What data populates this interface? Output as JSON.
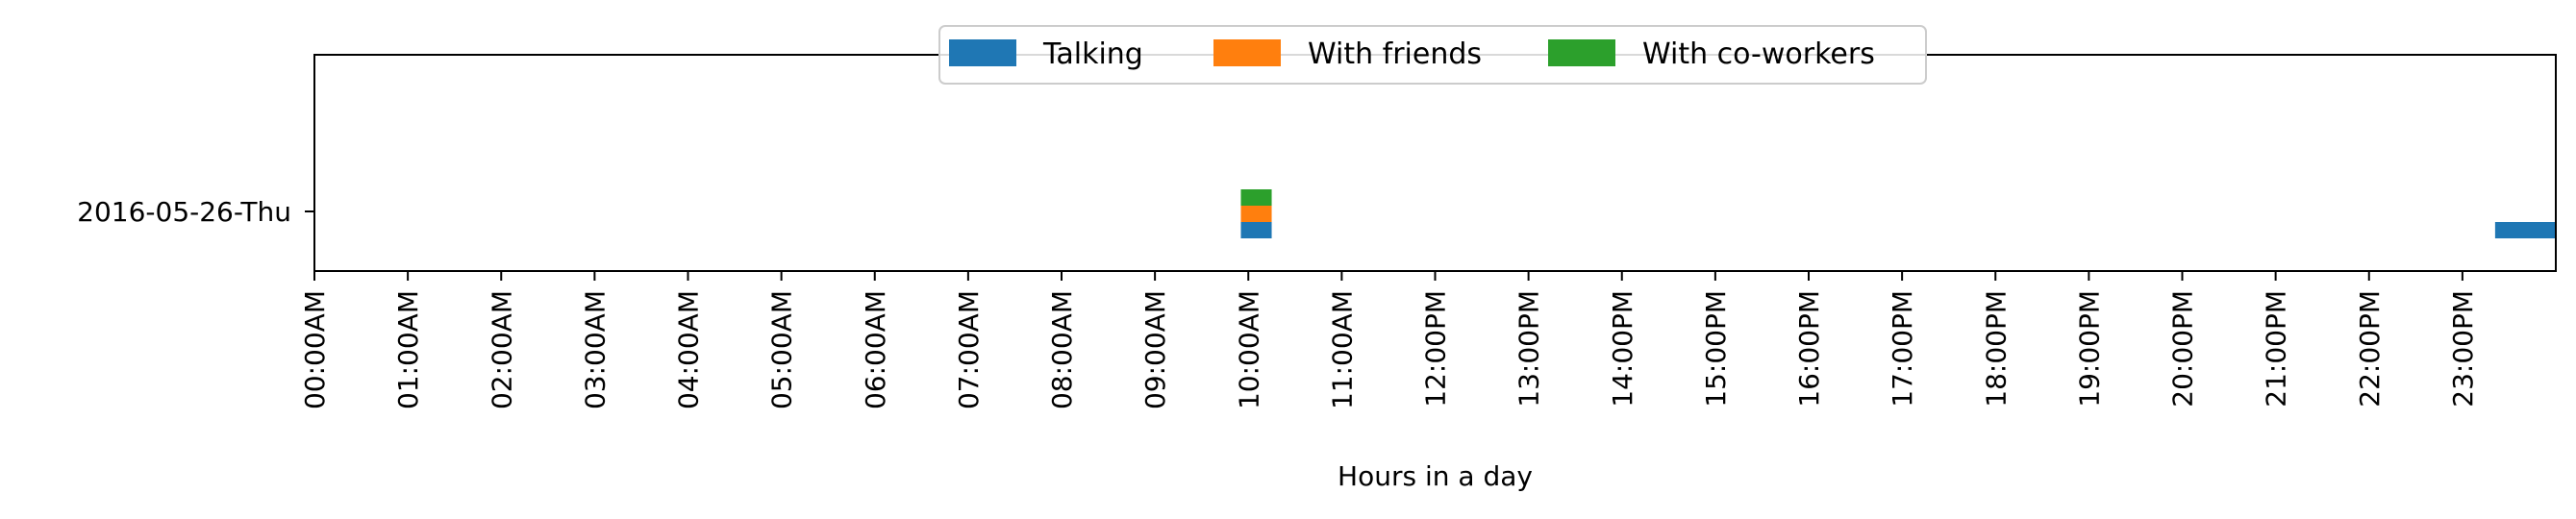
{
  "chart_data": {
    "type": "bar",
    "orientation": "horizontal-timeline",
    "title": "",
    "xlabel": "Hours in a day",
    "ylabel": "",
    "xlim": [
      0,
      24
    ],
    "categories": [
      "2016-05-26-Thu"
    ],
    "x_ticks": [
      {
        "value": 0,
        "label": "00:00AM"
      },
      {
        "value": 1,
        "label": "01:00AM"
      },
      {
        "value": 2,
        "label": "02:00AM"
      },
      {
        "value": 3,
        "label": "03:00AM"
      },
      {
        "value": 4,
        "label": "04:00AM"
      },
      {
        "value": 5,
        "label": "05:00AM"
      },
      {
        "value": 6,
        "label": "06:00AM"
      },
      {
        "value": 7,
        "label": "07:00AM"
      },
      {
        "value": 8,
        "label": "08:00AM"
      },
      {
        "value": 9,
        "label": "09:00AM"
      },
      {
        "value": 10,
        "label": "10:00AM"
      },
      {
        "value": 11,
        "label": "11:00AM"
      },
      {
        "value": 12,
        "label": "12:00PM"
      },
      {
        "value": 13,
        "label": "13:00PM"
      },
      {
        "value": 14,
        "label": "14:00PM"
      },
      {
        "value": 15,
        "label": "15:00PM"
      },
      {
        "value": 16,
        "label": "16:00PM"
      },
      {
        "value": 17,
        "label": "17:00PM"
      },
      {
        "value": 18,
        "label": "18:00PM"
      },
      {
        "value": 19,
        "label": "19:00PM"
      },
      {
        "value": 20,
        "label": "20:00PM"
      },
      {
        "value": 21,
        "label": "21:00PM"
      },
      {
        "value": 22,
        "label": "22:00PM"
      },
      {
        "value": 23,
        "label": "23:00PM"
      }
    ],
    "series": [
      {
        "name": "Talking",
        "color": "#1f77b4",
        "segments": [
          {
            "category": "2016-05-26-Thu",
            "start": 9.92,
            "end": 10.25
          },
          {
            "category": "2016-05-26-Thu",
            "start": 23.35,
            "end": 24.0
          }
        ]
      },
      {
        "name": "With friends",
        "color": "#ff7f0e",
        "segments": [
          {
            "category": "2016-05-26-Thu",
            "start": 9.92,
            "end": 10.25
          }
        ]
      },
      {
        "name": "With co-workers",
        "color": "#2ca02c",
        "segments": [
          {
            "category": "2016-05-26-Thu",
            "start": 9.92,
            "end": 10.25
          }
        ]
      }
    ],
    "legend": {
      "placement": "top-center",
      "columns": 3
    },
    "grid": false
  }
}
